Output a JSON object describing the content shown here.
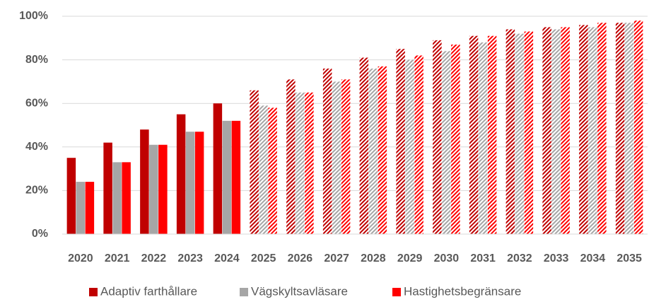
{
  "chart_data": {
    "type": "bar",
    "categories": [
      "2020",
      "2021",
      "2022",
      "2023",
      "2024",
      "2025",
      "2026",
      "2027",
      "2028",
      "2029",
      "2030",
      "2031",
      "2032",
      "2033",
      "2034",
      "2035"
    ],
    "hatched": [
      false,
      false,
      false,
      false,
      false,
      true,
      true,
      true,
      true,
      true,
      true,
      true,
      true,
      true,
      true,
      true
    ],
    "series": [
      {
        "name": "Adaptiv farthållare",
        "color": "#c00000",
        "values": [
          35,
          42,
          48,
          55,
          60,
          66,
          71,
          76,
          81,
          85,
          89,
          91,
          94,
          95,
          96,
          97
        ]
      },
      {
        "name": "Vägskyltsavläsare",
        "color": "#a6a6a6",
        "values": [
          24,
          33,
          41,
          47,
          52,
          59,
          65,
          70,
          76,
          80,
          84,
          88,
          92,
          94,
          95,
          97
        ]
      },
      {
        "name": "Hastighetsbegränsare",
        "color": "#ff0000",
        "values": [
          24,
          33,
          41,
          47,
          52,
          58,
          65,
          71,
          77,
          82,
          87,
          91,
          93,
          95,
          97,
          98
        ]
      }
    ],
    "ylim": [
      0,
      100
    ],
    "yticks": [
      {
        "value": 0,
        "label": "0%"
      },
      {
        "value": 20,
        "label": "20%"
      },
      {
        "value": 40,
        "label": "40%"
      },
      {
        "value": 60,
        "label": "60%"
      },
      {
        "value": 80,
        "label": "80%"
      },
      {
        "value": 100,
        "label": "100%"
      }
    ],
    "grid": true,
    "legend": "bottom"
  }
}
